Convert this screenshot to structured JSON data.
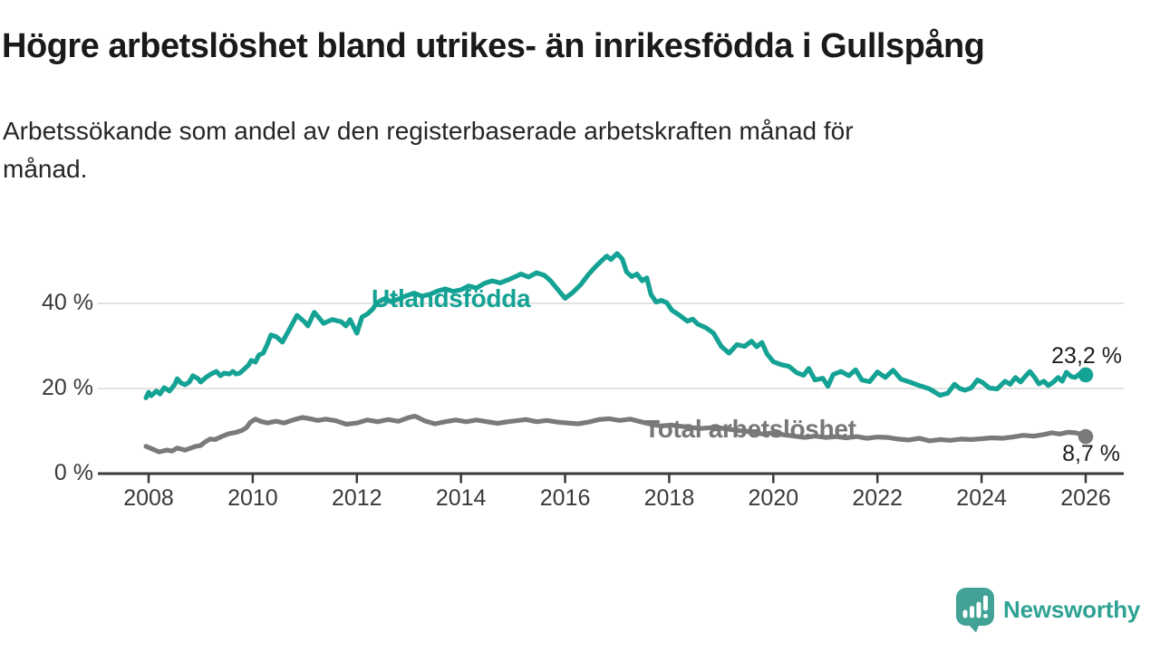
{
  "header": {
    "title": "Högre arbetslöshet bland utrikes- än inrikesfödda i Gullspång",
    "subtitle_line1": "Arbetssökande som andel av den registerbaserade arbetskraften månad för",
    "subtitle_line2": "månad."
  },
  "chart_data": {
    "type": "line",
    "x_axis": {
      "ticks": [
        2008,
        2010,
        2012,
        2014,
        2016,
        2018,
        2020,
        2022,
        2024,
        2026
      ],
      "range": [
        2007.9,
        2026.6
      ]
    },
    "y_axis": {
      "ticks": [
        0,
        20,
        40
      ],
      "tick_suffix": " %",
      "range": [
        0,
        55
      ],
      "grid": true
    },
    "colors": {
      "axis": "#3a3a3a",
      "grid": "#d8d8d8",
      "tick_text": "#3a3a3a"
    },
    "series": [
      {
        "name": "Utlandsfödda",
        "slug": "utlandsfodda",
        "color": "#14a294",
        "end_label": "23,2 %",
        "end_value": 23.2,
        "points": [
          [
            2007.95,
            17.8
          ],
          [
            2008.0,
            19.1
          ],
          [
            2008.05,
            18.3
          ],
          [
            2008.15,
            19.4
          ],
          [
            2008.22,
            18.7
          ],
          [
            2008.3,
            20.2
          ],
          [
            2008.4,
            19.4
          ],
          [
            2008.5,
            20.9
          ],
          [
            2008.55,
            22.3
          ],
          [
            2008.62,
            21.3
          ],
          [
            2008.7,
            20.9
          ],
          [
            2008.78,
            21.5
          ],
          [
            2008.85,
            23.0
          ],
          [
            2008.95,
            22.3
          ],
          [
            2009.0,
            21.5
          ],
          [
            2009.1,
            22.6
          ],
          [
            2009.2,
            23.4
          ],
          [
            2009.3,
            24.0
          ],
          [
            2009.38,
            23.0
          ],
          [
            2009.45,
            23.6
          ],
          [
            2009.55,
            23.4
          ],
          [
            2009.62,
            24.0
          ],
          [
            2009.68,
            23.4
          ],
          [
            2009.75,
            23.6
          ],
          [
            2009.85,
            24.7
          ],
          [
            2009.92,
            25.5
          ],
          [
            2009.97,
            26.6
          ],
          [
            2010.05,
            26.2
          ],
          [
            2010.12,
            27.9
          ],
          [
            2010.2,
            28.3
          ],
          [
            2010.28,
            30.4
          ],
          [
            2010.35,
            32.6
          ],
          [
            2010.45,
            32.2
          ],
          [
            2010.57,
            30.9
          ],
          [
            2010.7,
            33.8
          ],
          [
            2010.85,
            37.2
          ],
          [
            2011.0,
            35.6
          ],
          [
            2011.06,
            34.7
          ],
          [
            2011.18,
            37.9
          ],
          [
            2011.28,
            36.5
          ],
          [
            2011.36,
            35.3
          ],
          [
            2011.45,
            35.8
          ],
          [
            2011.53,
            36.2
          ],
          [
            2011.62,
            35.9
          ],
          [
            2011.7,
            35.7
          ],
          [
            2011.79,
            34.7
          ],
          [
            2011.87,
            36.2
          ],
          [
            2012.0,
            33.0
          ],
          [
            2012.1,
            36.8
          ],
          [
            2012.2,
            37.5
          ],
          [
            2012.3,
            38.6
          ],
          [
            2012.38,
            40.0
          ],
          [
            2012.45,
            40.6
          ],
          [
            2012.55,
            41.2
          ],
          [
            2012.65,
            40.4
          ],
          [
            2012.8,
            41.0
          ],
          [
            2012.95,
            41.8
          ],
          [
            2013.1,
            42.4
          ],
          [
            2013.25,
            41.7
          ],
          [
            2013.4,
            42.1
          ],
          [
            2013.55,
            42.9
          ],
          [
            2013.7,
            43.4
          ],
          [
            2013.85,
            42.8
          ],
          [
            2014.0,
            43.2
          ],
          [
            2014.15,
            44.1
          ],
          [
            2014.3,
            43.6
          ],
          [
            2014.45,
            44.7
          ],
          [
            2014.6,
            45.3
          ],
          [
            2014.75,
            44.8
          ],
          [
            2014.9,
            45.5
          ],
          [
            2015.05,
            46.3
          ],
          [
            2015.15,
            46.9
          ],
          [
            2015.3,
            46.2
          ],
          [
            2015.45,
            47.2
          ],
          [
            2015.6,
            46.6
          ],
          [
            2015.72,
            45.3
          ],
          [
            2015.85,
            43.4
          ],
          [
            2016.0,
            41.2
          ],
          [
            2016.15,
            42.6
          ],
          [
            2016.3,
            44.4
          ],
          [
            2016.45,
            46.8
          ],
          [
            2016.6,
            48.8
          ],
          [
            2016.7,
            50.0
          ],
          [
            2016.8,
            51.1
          ],
          [
            2016.88,
            50.3
          ],
          [
            2017.0,
            51.7
          ],
          [
            2017.1,
            50.4
          ],
          [
            2017.18,
            47.4
          ],
          [
            2017.28,
            46.3
          ],
          [
            2017.38,
            46.9
          ],
          [
            2017.48,
            45.3
          ],
          [
            2017.57,
            46.0
          ],
          [
            2017.65,
            42.1
          ],
          [
            2017.75,
            40.3
          ],
          [
            2017.85,
            40.7
          ],
          [
            2017.95,
            40.2
          ],
          [
            2018.05,
            38.4
          ],
          [
            2018.2,
            37.2
          ],
          [
            2018.35,
            35.8
          ],
          [
            2018.45,
            36.3
          ],
          [
            2018.55,
            35.1
          ],
          [
            2018.7,
            34.3
          ],
          [
            2018.85,
            33.0
          ],
          [
            2019.0,
            29.9
          ],
          [
            2019.15,
            28.3
          ],
          [
            2019.3,
            30.3
          ],
          [
            2019.45,
            29.9
          ],
          [
            2019.58,
            31.1
          ],
          [
            2019.68,
            29.8
          ],
          [
            2019.78,
            30.8
          ],
          [
            2019.88,
            28.1
          ],
          [
            2020.0,
            26.3
          ],
          [
            2020.15,
            25.6
          ],
          [
            2020.3,
            25.2
          ],
          [
            2020.45,
            23.7
          ],
          [
            2020.58,
            23.1
          ],
          [
            2020.68,
            24.7
          ],
          [
            2020.8,
            22.0
          ],
          [
            2020.95,
            22.4
          ],
          [
            2021.05,
            20.5
          ],
          [
            2021.15,
            23.3
          ],
          [
            2021.3,
            24.0
          ],
          [
            2021.45,
            23.0
          ],
          [
            2021.58,
            24.4
          ],
          [
            2021.7,
            22.0
          ],
          [
            2021.85,
            21.6
          ],
          [
            2022.0,
            23.9
          ],
          [
            2022.15,
            22.6
          ],
          [
            2022.3,
            24.3
          ],
          [
            2022.45,
            22.2
          ],
          [
            2022.6,
            21.6
          ],
          [
            2022.8,
            20.7
          ],
          [
            2023.0,
            19.9
          ],
          [
            2023.2,
            18.4
          ],
          [
            2023.35,
            18.9
          ],
          [
            2023.48,
            21.0
          ],
          [
            2023.58,
            20.0
          ],
          [
            2023.68,
            19.6
          ],
          [
            2023.8,
            20.1
          ],
          [
            2023.92,
            22.0
          ],
          [
            2024.02,
            21.4
          ],
          [
            2024.15,
            20.1
          ],
          [
            2024.3,
            19.9
          ],
          [
            2024.45,
            21.7
          ],
          [
            2024.55,
            21.0
          ],
          [
            2024.65,
            22.6
          ],
          [
            2024.75,
            21.5
          ],
          [
            2024.85,
            23.0
          ],
          [
            2024.93,
            24.0
          ],
          [
            2025.02,
            22.6
          ],
          [
            2025.1,
            21.1
          ],
          [
            2025.2,
            21.7
          ],
          [
            2025.28,
            20.7
          ],
          [
            2025.38,
            21.5
          ],
          [
            2025.47,
            22.6
          ],
          [
            2025.55,
            21.7
          ],
          [
            2025.63,
            23.8
          ],
          [
            2025.72,
            22.8
          ],
          [
            2025.8,
            22.6
          ],
          [
            2025.88,
            23.4
          ],
          [
            2025.95,
            22.9
          ],
          [
            2026.0,
            23.2
          ]
        ]
      },
      {
        "name": "Total arbetslöshet",
        "slug": "total-arbetsloshet",
        "color": "#7a7a7d",
        "end_label": "8,7 %",
        "end_value": 8.7,
        "points": [
          [
            2007.95,
            6.4
          ],
          [
            2008.05,
            5.9
          ],
          [
            2008.2,
            5.1
          ],
          [
            2008.35,
            5.5
          ],
          [
            2008.45,
            5.3
          ],
          [
            2008.55,
            6.0
          ],
          [
            2008.7,
            5.5
          ],
          [
            2008.9,
            6.4
          ],
          [
            2009.0,
            6.6
          ],
          [
            2009.08,
            7.4
          ],
          [
            2009.18,
            8.1
          ],
          [
            2009.28,
            8.0
          ],
          [
            2009.4,
            8.7
          ],
          [
            2009.55,
            9.4
          ],
          [
            2009.68,
            9.7
          ],
          [
            2009.8,
            10.2
          ],
          [
            2009.88,
            10.8
          ],
          [
            2009.95,
            12.0
          ],
          [
            2010.05,
            12.8
          ],
          [
            2010.15,
            12.3
          ],
          [
            2010.28,
            11.9
          ],
          [
            2010.45,
            12.3
          ],
          [
            2010.6,
            11.9
          ],
          [
            2010.8,
            12.7
          ],
          [
            2010.95,
            13.2
          ],
          [
            2011.1,
            12.9
          ],
          [
            2011.25,
            12.5
          ],
          [
            2011.4,
            12.8
          ],
          [
            2011.6,
            12.4
          ],
          [
            2011.8,
            11.6
          ],
          [
            2012.0,
            11.9
          ],
          [
            2012.2,
            12.6
          ],
          [
            2012.4,
            12.2
          ],
          [
            2012.6,
            12.7
          ],
          [
            2012.8,
            12.3
          ],
          [
            2013.0,
            13.2
          ],
          [
            2013.12,
            13.5
          ],
          [
            2013.3,
            12.4
          ],
          [
            2013.5,
            11.7
          ],
          [
            2013.7,
            12.2
          ],
          [
            2013.9,
            12.6
          ],
          [
            2014.1,
            12.2
          ],
          [
            2014.3,
            12.6
          ],
          [
            2014.5,
            12.2
          ],
          [
            2014.7,
            11.8
          ],
          [
            2014.9,
            12.2
          ],
          [
            2015.05,
            12.4
          ],
          [
            2015.25,
            12.7
          ],
          [
            2015.45,
            12.2
          ],
          [
            2015.65,
            12.5
          ],
          [
            2015.85,
            12.1
          ],
          [
            2016.05,
            11.9
          ],
          [
            2016.25,
            11.7
          ],
          [
            2016.45,
            12.1
          ],
          [
            2016.65,
            12.7
          ],
          [
            2016.85,
            12.9
          ],
          [
            2017.05,
            12.5
          ],
          [
            2017.25,
            12.8
          ],
          [
            2017.45,
            12.2
          ],
          [
            2017.65,
            11.6
          ],
          [
            2017.85,
            11.2
          ],
          [
            2018.05,
            11.4
          ],
          [
            2018.3,
            11.0
          ],
          [
            2018.6,
            10.6
          ],
          [
            2018.9,
            10.9
          ],
          [
            2019.2,
            10.3
          ],
          [
            2019.5,
            9.9
          ],
          [
            2019.8,
            9.3
          ],
          [
            2020.0,
            9.6
          ],
          [
            2020.2,
            9.1
          ],
          [
            2020.4,
            8.8
          ],
          [
            2020.6,
            8.5
          ],
          [
            2020.8,
            8.8
          ],
          [
            2021.0,
            8.5
          ],
          [
            2021.2,
            8.7
          ],
          [
            2021.4,
            8.4
          ],
          [
            2021.6,
            8.7
          ],
          [
            2021.8,
            8.3
          ],
          [
            2022.0,
            8.6
          ],
          [
            2022.2,
            8.5
          ],
          [
            2022.4,
            8.1
          ],
          [
            2022.6,
            7.9
          ],
          [
            2022.8,
            8.3
          ],
          [
            2023.0,
            7.7
          ],
          [
            2023.2,
            8.0
          ],
          [
            2023.4,
            7.8
          ],
          [
            2023.6,
            8.1
          ],
          [
            2023.8,
            8.0
          ],
          [
            2024.0,
            8.2
          ],
          [
            2024.2,
            8.4
          ],
          [
            2024.4,
            8.3
          ],
          [
            2024.6,
            8.6
          ],
          [
            2024.8,
            9.0
          ],
          [
            2025.0,
            8.8
          ],
          [
            2025.2,
            9.2
          ],
          [
            2025.35,
            9.6
          ],
          [
            2025.5,
            9.3
          ],
          [
            2025.65,
            9.7
          ],
          [
            2025.8,
            9.6
          ],
          [
            2025.9,
            9.3
          ],
          [
            2026.0,
            8.7
          ]
        ]
      }
    ]
  },
  "footer": {
    "brand": "Newsworthy",
    "logo_icon": "speech-bubble-bar-chart",
    "brand_color": "#2fa294",
    "icon_color": "#41a295"
  }
}
